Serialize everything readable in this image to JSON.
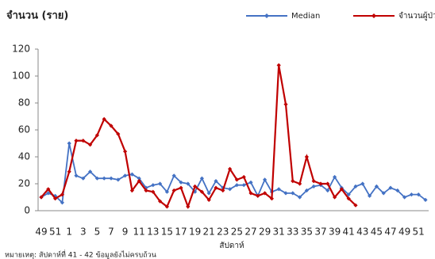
{
  "chart_data": {
    "type": "line",
    "title": "จำนวน (ราย)",
    "x_label": "สัปดาห์",
    "note": "หมายเหตุ: สัปดาห์ที่  41 - 42  ข้อมูลยังไม่ครบถ้วน",
    "categories": [
      "49",
      null,
      "51",
      null,
      "1",
      null,
      "3",
      null,
      "5",
      null,
      "7",
      null,
      "9",
      null,
      "11",
      null,
      "13",
      null,
      "15",
      null,
      "17",
      null,
      "19",
      null,
      "21",
      null,
      "23",
      null,
      "25",
      null,
      "27",
      null,
      "29",
      null,
      "31",
      null,
      "33",
      null,
      "35",
      null,
      "37",
      null,
      "39",
      null,
      "41",
      null,
      "43",
      null,
      "45",
      null,
      "47",
      null,
      "49",
      null,
      "51",
      null
    ],
    "series": [
      {
        "name": "Median",
        "color": "#4472c4",
        "values": [
          10,
          13,
          11,
          6,
          50,
          26,
          24,
          29,
          24,
          24,
          24,
          23,
          26,
          27,
          24,
          17,
          19,
          20,
          14,
          26,
          21,
          20,
          14,
          24,
          13,
          22,
          17,
          16,
          19,
          19,
          21,
          11,
          23,
          14,
          16,
          13,
          13,
          10,
          15,
          18,
          19,
          15,
          25,
          17,
          12,
          18,
          20,
          11,
          18,
          13,
          17,
          15,
          10,
          12,
          12,
          8
        ]
      },
      {
        "name": "จำนวนผู้ป่วย",
        "color": "#c00000",
        "values": [
          10,
          16,
          9,
          12,
          29,
          52,
          52,
          49,
          56,
          68,
          63,
          57,
          44,
          15,
          22,
          15,
          14,
          7,
          3,
          15,
          17,
          3,
          18,
          14,
          8,
          17,
          15,
          31,
          23,
          25,
          13,
          11,
          13,
          9,
          108,
          79,
          22,
          20,
          40,
          22,
          20,
          20,
          10,
          16,
          9,
          4,
          null,
          null,
          null,
          null,
          null,
          null,
          null,
          null,
          null,
          null
        ]
      }
    ],
    "ylim": [
      0,
      120
    ],
    "yticks": [
      0,
      20,
      40,
      60,
      80,
      100,
      120
    ],
    "legend": "top-right",
    "grid": false
  }
}
